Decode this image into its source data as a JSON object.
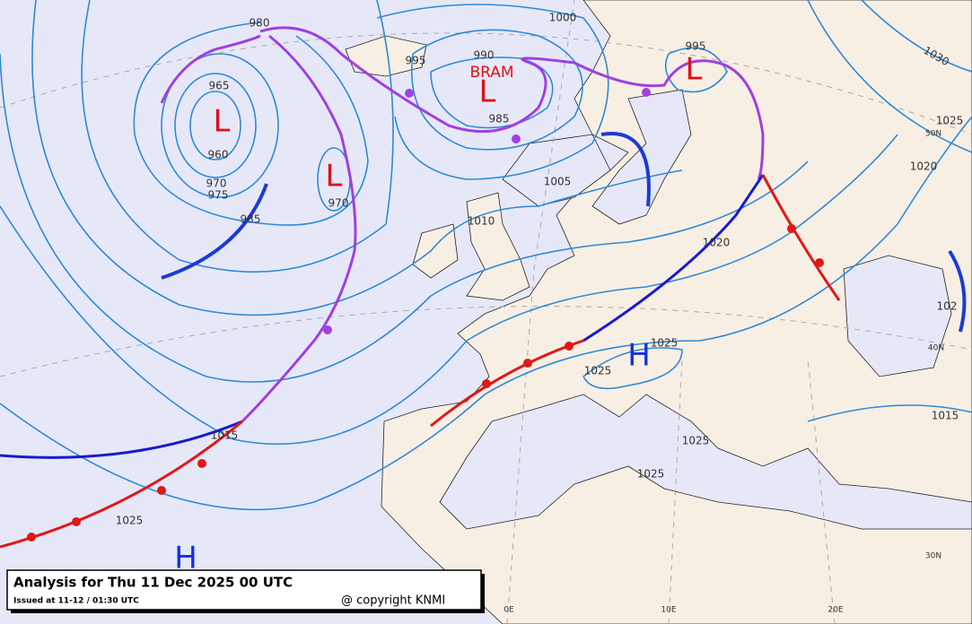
{
  "header": {
    "title": "Analysis for Thu 11 Dec 2025 00 UTC",
    "issued": "Issued at 11-12 / 01:30 UTC",
    "copyright": "@ copyright KNMI"
  },
  "pressure_systems": [
    "L",
    "L",
    "L",
    "L",
    "H",
    "H"
  ],
  "storm_name": "BRAM",
  "isobar_labels": [
    1000,
    980,
    995,
    990,
    965,
    960,
    970,
    975,
    985,
    970,
    985,
    995,
    1005,
    1010,
    1020,
    1030,
    1025,
    1020,
    1015,
    1025,
    1015,
    1025,
    1025,
    1025,
    1025,
    102
  ],
  "graticule_labels": [
    "50N",
    "40N",
    "30N",
    "0E",
    "10E",
    "20E"
  ]
}
